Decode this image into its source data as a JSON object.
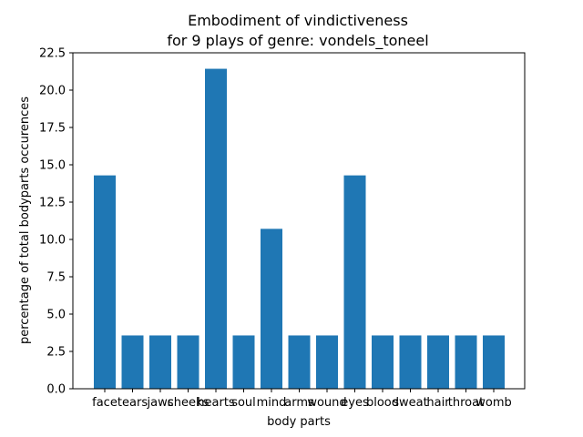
{
  "chart_data": {
    "type": "bar",
    "title": "Embodiment of vindictiveness\nfor 9 plays of genre: vondels_toneel",
    "xlabel": "body parts",
    "ylabel": "percentage of total bodyparts occurences",
    "categories": [
      "face",
      "tears",
      "jaws",
      "cheeks",
      "hearts",
      "soul",
      "mind",
      "arms",
      "wound",
      "eyes",
      "blood",
      "sweat",
      "hair",
      "throat",
      "womb"
    ],
    "values": [
      14.29,
      3.57,
      3.57,
      3.57,
      21.43,
      3.57,
      10.71,
      3.57,
      3.57,
      14.29,
      3.57,
      3.57,
      3.57,
      3.57,
      3.57
    ],
    "ylim": [
      0,
      22.5
    ],
    "yticks": [
      "0.0",
      "2.5",
      "5.0",
      "7.5",
      "10.0",
      "12.5",
      "15.0",
      "17.5",
      "20.0",
      "22.5"
    ],
    "bar_color": "#1f77b4",
    "grid": false,
    "legend": "none"
  }
}
